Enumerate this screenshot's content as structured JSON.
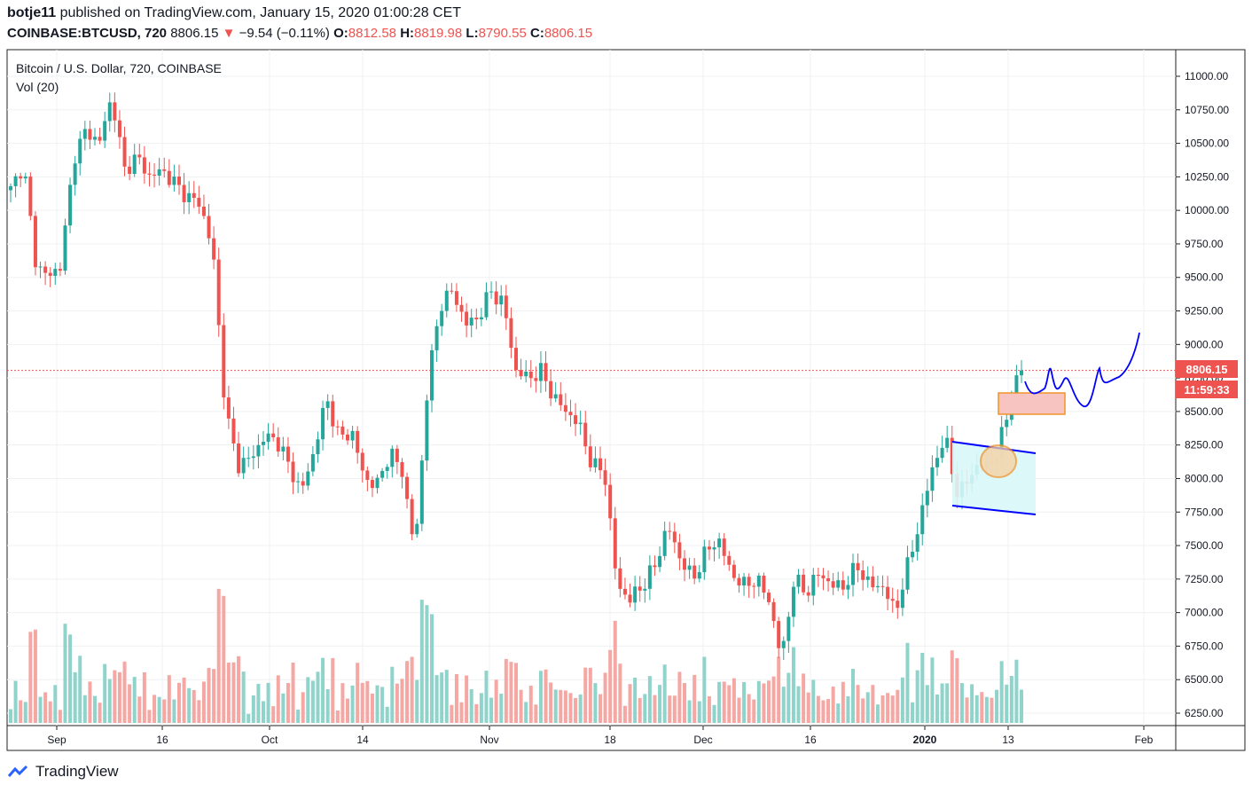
{
  "header": {
    "author": "botje11",
    "published_text": "published on TradingView.com, January 15, 2020 01:00:28 CET",
    "symbol": "COINBASE:BTCUSD, 720",
    "last": "8806.15",
    "change_arrow": "▼",
    "change": "−9.54 (−0.11%)",
    "open_label": "O:",
    "open": "8812.58",
    "high_label": "H:",
    "high": "8819.98",
    "low_label": "L:",
    "low": "8790.55",
    "close_label": "C:",
    "close": "8806.15"
  },
  "legend": {
    "title": "Bitcoin / U.S. Dollar, 720, COINBASE",
    "volume": "Vol (20)"
  },
  "price_badge": {
    "price": "8806.15",
    "countdown": "11:59:33"
  },
  "footer": {
    "brand": "TradingView"
  },
  "colors": {
    "up": "#26a69a",
    "down": "#ef5350",
    "up_vol": "#8fd3cb",
    "down_vol": "#f5a7a4",
    "drawing": "#0000ff",
    "rect": "#f8c4c2",
    "rect_border": "#f0932b",
    "channel": "#d9f7f8"
  },
  "chart_data": {
    "type": "candlestick",
    "title": "Bitcoin / U.S. Dollar, 720, COINBASE",
    "y_ticks": [
      "11000.00",
      "10750.00",
      "10500.00",
      "10250.00",
      "10000.00",
      "9750.00",
      "9500.00",
      "9250.00",
      "9000.00",
      "8750.00",
      "8500.00",
      "8250.00",
      "8000.00",
      "7750.00",
      "7500.00",
      "7250.00",
      "7000.00",
      "6750.00",
      "6500.00",
      "6250.00"
    ],
    "x_ticks": [
      "Sep",
      "16",
      "Oct",
      "14",
      "Nov",
      "18",
      "Dec",
      "16",
      "2020",
      "13",
      "Feb"
    ],
    "ylim": [
      6200,
      11200
    ],
    "last_price": 8806.15,
    "series": [
      {
        "name": "BTCUSD",
        "points": [
          [
            "Aug 26",
            10150
          ],
          [
            "Aug 27",
            10350
          ],
          [
            "Aug 28",
            9600
          ],
          [
            "Aug 30",
            9500
          ],
          [
            "Sep 1",
            9600
          ],
          [
            "Sep 3",
            10400
          ],
          [
            "Sep 5",
            10600
          ],
          [
            "Sep 7",
            10500
          ],
          [
            "Sep 8",
            10850
          ],
          [
            "Sep 10",
            10300
          ],
          [
            "Sep 12",
            10400
          ],
          [
            "Sep 14",
            10250
          ],
          [
            "Sep 16",
            10300
          ],
          [
            "Sep 18",
            10200
          ],
          [
            "Sep 20",
            10100
          ],
          [
            "Sep 22",
            10050
          ],
          [
            "Sep 24",
            9700
          ],
          [
            "Sep 24b",
            8500
          ],
          [
            "Sep 26",
            8100
          ],
          [
            "Sep 28",
            8150
          ],
          [
            "Sep 30",
            8300
          ],
          [
            "Oct 2",
            8300
          ],
          [
            "Oct 4",
            8100
          ],
          [
            "Oct 6",
            7900
          ],
          [
            "Oct 8",
            8200
          ],
          [
            "Oct 10",
            8600
          ],
          [
            "Oct 12",
            8300
          ],
          [
            "Oct 14",
            8350
          ],
          [
            "Oct 16",
            8000
          ],
          [
            "Oct 18",
            7950
          ],
          [
            "Oct 20",
            8200
          ],
          [
            "Oct 22",
            8050
          ],
          [
            "Oct 23",
            7450
          ],
          [
            "Oct 25",
            8700
          ],
          [
            "Oct 26",
            9300
          ],
          [
            "Oct 28",
            9400
          ],
          [
            "Oct 30",
            9150
          ],
          [
            "Nov 1",
            9200
          ],
          [
            "Nov 3",
            9400
          ],
          [
            "Nov 5",
            9300
          ],
          [
            "Nov 7",
            8800
          ],
          [
            "Nov 9",
            8750
          ],
          [
            "Nov 11",
            8800
          ],
          [
            "Nov 13",
            8600
          ],
          [
            "Nov 15",
            8500
          ],
          [
            "Nov 17",
            8400
          ],
          [
            "Nov 19",
            8100
          ],
          [
            "Nov 20",
            8050
          ],
          [
            "Nov 22",
            7200
          ],
          [
            "Nov 24",
            7100
          ],
          [
            "Nov 25",
            7200
          ],
          [
            "Nov 27",
            7350
          ],
          [
            "Nov 29",
            7650
          ],
          [
            "Dec 1",
            7400
          ],
          [
            "Dec 3",
            7250
          ],
          [
            "Dec 5",
            7450
          ],
          [
            "Dec 7",
            7550
          ],
          [
            "Dec 9",
            7300
          ],
          [
            "Dec 11",
            7200
          ],
          [
            "Dec 13",
            7250
          ],
          [
            "Dec 15",
            7100
          ],
          [
            "Dec 17",
            6650
          ],
          [
            "Dec 18",
            7250
          ],
          [
            "Dec 20",
            7150
          ],
          [
            "Dec 22",
            7300
          ],
          [
            "Dec 24",
            7200
          ],
          [
            "Dec 26",
            7200
          ],
          [
            "Dec 28",
            7350
          ],
          [
            "Dec 30",
            7200
          ],
          [
            "Jan 1",
            7200
          ],
          [
            "Jan 3",
            7000
          ],
          [
            "Jan 4",
            7350
          ],
          [
            "Jan 6",
            7700
          ],
          [
            "Jan 7",
            8100
          ],
          [
            "Jan 8",
            8300
          ],
          [
            "Jan 9",
            7850
          ],
          [
            "Jan 10",
            8050
          ],
          [
            "Jan 11",
            8100
          ],
          [
            "Jan 13",
            8150
          ],
          [
            "Jan 14",
            8550
          ],
          [
            "Jan 15",
            8806.15
          ]
        ]
      }
    ]
  }
}
